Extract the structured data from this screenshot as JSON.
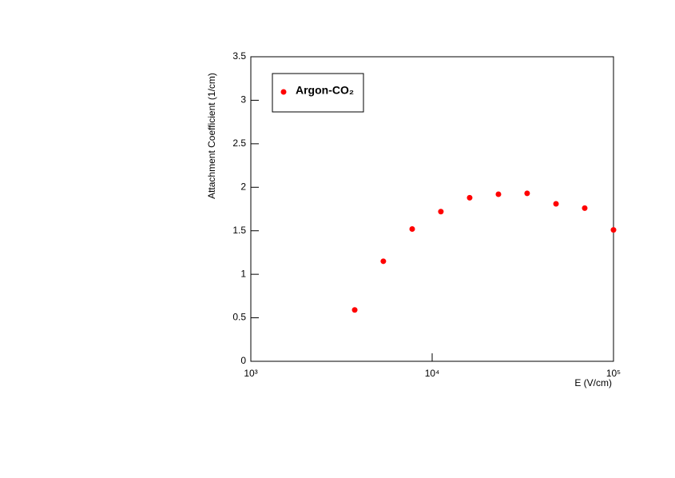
{
  "chart_data": {
    "type": "scatter",
    "x_label": "E (V/cm)",
    "y_label": "Attachment Coefficient (1/cm)",
    "log_x": true,
    "xlim": [
      1000,
      100000
    ],
    "xticks": [
      {
        "value": 1000,
        "label": "10³"
      },
      {
        "value": 10000,
        "label": "10⁴"
      },
      {
        "value": 100000,
        "label": "10⁵"
      }
    ],
    "ylim": [
      0,
      3.5
    ],
    "yticks": [
      0,
      0.5,
      1,
      1.5,
      2,
      2.5,
      3,
      3.5
    ],
    "legend": "top-left",
    "series": [
      {
        "name": "Argon-CO₂",
        "color": "#ff0000",
        "x": [
          3740,
          5380,
          7760,
          11170,
          16100,
          23200,
          33400,
          48200,
          69400,
          100000
        ],
        "values": [
          0.59,
          1.15,
          1.52,
          1.72,
          1.88,
          1.92,
          1.93,
          1.81,
          1.76,
          1.51
        ]
      }
    ]
  }
}
